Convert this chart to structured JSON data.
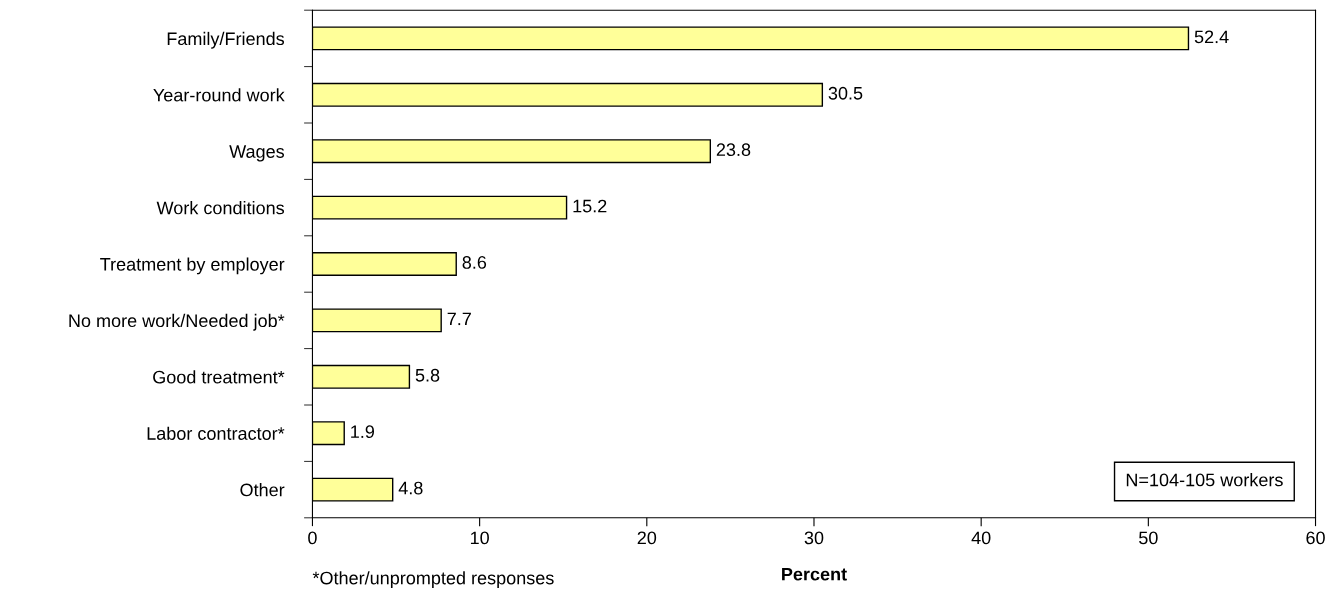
{
  "chart_data": {
    "type": "bar",
    "orientation": "horizontal",
    "xlabel": "Percent",
    "categories": [
      "Family/Friends",
      "Year-round work",
      "Wages",
      "Work conditions",
      "Treatment by employer",
      "No more work/Needed job*",
      "Good treatment*",
      "Labor contractor*",
      "Other"
    ],
    "values": [
      52.4,
      30.5,
      23.8,
      15.2,
      8.6,
      7.7,
      5.8,
      1.9,
      4.8
    ],
    "color": "#ffff99",
    "xlim": [
      0,
      60
    ],
    "xticks": [
      0,
      10,
      20,
      30,
      40,
      50,
      60
    ],
    "data_labels": true,
    "grid": false,
    "legend": false,
    "annotations": [
      "N=104-105 workers",
      "*Other/unprompted responses"
    ]
  }
}
